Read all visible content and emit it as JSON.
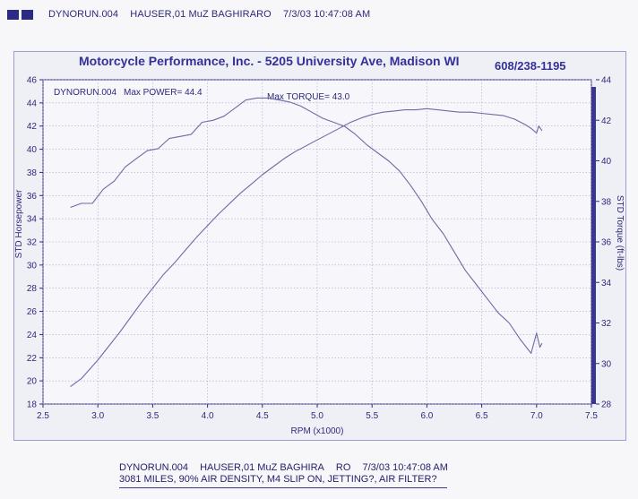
{
  "header": {
    "run": "DYNORUN.004",
    "rider": "HAUSER,01 MuZ BAGHIRARO",
    "datetime": "7/3/03 10:47:08 AM"
  },
  "banner": {
    "title": "Motorcycle Performance, Inc. - 5205 University Ave, Madison WI",
    "phone": "608/238-1195"
  },
  "footer": {
    "run": "DYNORUN.004",
    "rider": "HAUSER,01 MuZ BAGHIRA",
    "code": "RO",
    "datetime": "7/3/03 10:47:08 AM",
    "notes": "3081 MILES, 90% AIR DENSITY, M4 SLIP ON, JETTING?, AIR FILTER?"
  },
  "chart_data": {
    "type": "line",
    "title": "",
    "xlabel": "RPM (x1000)",
    "ylabel": "STD Horsepower",
    "y2label": "STD Torque (ft-lbs)",
    "xlim": [
      2.5,
      7.5
    ],
    "ylim": [
      18,
      46
    ],
    "y2lim": [
      28,
      44
    ],
    "x_ticks": [
      "2.5",
      "3.0",
      "3.5",
      "4.0",
      "4.5",
      "5.0",
      "5.5",
      "6.0",
      "6.5",
      "7.0",
      "7.5"
    ],
    "y_ticks": [
      "18",
      "20",
      "22",
      "24",
      "26",
      "28",
      "30",
      "32",
      "34",
      "36",
      "38",
      "40",
      "42",
      "44",
      "46"
    ],
    "y2_ticks": [
      "28",
      "30",
      "32",
      "34",
      "36",
      "38",
      "40",
      "42",
      "44"
    ],
    "grid": true,
    "annotations": {
      "run_label": "DYNORUN.004",
      "max_power": "Max POWER= 44.4",
      "max_torque": "Max TORQUE= 43.0"
    },
    "series": [
      {
        "axis": "left",
        "color": "#6d6aa6",
        "x": [
          2.75,
          2.85,
          3.0,
          3.1,
          3.2,
          3.3,
          3.4,
          3.5,
          3.6,
          3.7,
          3.8,
          3.9,
          4.0,
          4.1,
          4.2,
          4.3,
          4.4,
          4.5,
          4.6,
          4.7,
          4.8,
          4.9,
          5.0,
          5.1,
          5.2,
          5.3,
          5.4,
          5.5,
          5.6,
          5.7,
          5.8,
          5.9,
          6.0,
          6.1,
          6.2,
          6.3,
          6.4,
          6.5,
          6.6,
          6.7,
          6.8,
          6.9,
          6.95,
          7.0,
          7.02,
          7.05
        ],
        "y": [
          19.5,
          20.2,
          21.8,
          23.0,
          24.2,
          25.5,
          26.8,
          28.0,
          29.2,
          30.2,
          31.3,
          32.4,
          33.4,
          34.4,
          35.3,
          36.2,
          37.0,
          37.8,
          38.5,
          39.2,
          39.8,
          40.3,
          40.8,
          41.3,
          41.8,
          42.3,
          42.7,
          43.0,
          43.2,
          43.3,
          43.4,
          43.4,
          43.5,
          43.4,
          43.3,
          43.2,
          43.2,
          43.1,
          43.0,
          42.9,
          42.6,
          42.1,
          41.8,
          41.4,
          42.0,
          41.6
        ]
      },
      {
        "axis": "right",
        "color": "#6d6aa6",
        "x": [
          2.75,
          2.85,
          2.95,
          3.05,
          3.15,
          3.25,
          3.35,
          3.45,
          3.55,
          3.65,
          3.75,
          3.85,
          3.95,
          4.05,
          4.15,
          4.25,
          4.35,
          4.45,
          4.55,
          4.65,
          4.75,
          4.85,
          4.95,
          5.05,
          5.15,
          5.25,
          5.35,
          5.45,
          5.55,
          5.65,
          5.75,
          5.85,
          5.95,
          6.05,
          6.15,
          6.25,
          6.35,
          6.45,
          6.55,
          6.65,
          6.75,
          6.85,
          6.95,
          7.0,
          7.03,
          7.05
        ],
        "y": [
          37.7,
          37.9,
          37.9,
          38.6,
          39.0,
          39.7,
          40.1,
          40.5,
          40.6,
          41.1,
          41.2,
          41.3,
          41.9,
          42.0,
          42.2,
          42.6,
          43.0,
          43.1,
          43.1,
          43.0,
          42.9,
          42.7,
          42.4,
          42.1,
          41.9,
          41.7,
          41.3,
          40.8,
          40.4,
          40.0,
          39.5,
          38.8,
          38.0,
          37.1,
          36.4,
          35.5,
          34.6,
          33.9,
          33.2,
          32.5,
          32.0,
          31.2,
          30.5,
          31.5,
          30.8,
          31.0
        ]
      }
    ]
  }
}
